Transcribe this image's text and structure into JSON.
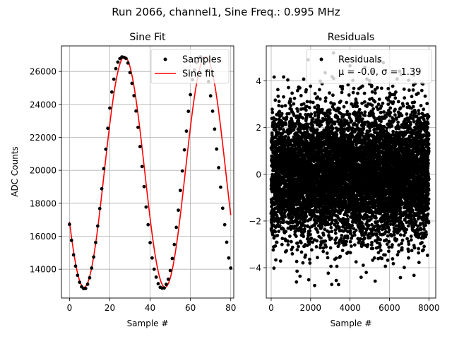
{
  "suptitle": "Run 2066, channel1, Sine Freq.: 0.995 MHz",
  "chart_data": [
    {
      "type": "scatter",
      "title": "Sine Fit",
      "xlabel": "Sample #",
      "ylabel": "ADC Counts",
      "xlim": [
        -4,
        81.5
      ],
      "ylim": [
        12250,
        27550
      ],
      "xticks": [
        0,
        20,
        40,
        60,
        80
      ],
      "yticks": [
        14000,
        16000,
        18000,
        20000,
        22000,
        24000,
        26000
      ],
      "grid": true,
      "legend": "top-right",
      "fit": {
        "amplitude": 7000,
        "offset": 19900,
        "period": 40.2,
        "x_peak": 27.3,
        "x_range": [
          0,
          80
        ]
      },
      "series": [
        {
          "name": "Samples",
          "kind": "points",
          "color": "#000000",
          "x_start": 0,
          "x_step": 1,
          "values": [
            16720,
            15750,
            14870,
            14190,
            13630,
            13210,
            12930,
            12820,
            12830,
            13090,
            13480,
            14070,
            14740,
            15620,
            16620,
            17680,
            18880,
            20100,
            21280,
            22550,
            23780,
            24750,
            25530,
            26170,
            26570,
            26780,
            26880,
            26860,
            26790,
            26510,
            25930,
            25280,
            24530,
            23600,
            22610,
            21440,
            20230,
            19010,
            17770,
            16700,
            15610,
            14680,
            14000,
            13520,
            13120,
            12900,
            12850,
            12860,
            13080,
            13390,
            13920,
            14650,
            15500,
            16540,
            17580,
            18780,
            19960,
            21240,
            22380,
            23580,
            24590,
            25500,
            26090,
            26530,
            26820,
            26890,
            26770,
            26490,
            26040,
            25390,
            24520,
            23590,
            22500,
            21290,
            20160,
            18980,
            17700,
            16700,
            15640,
            14680,
            14070
          ]
        },
        {
          "name": "Sine fit",
          "kind": "line",
          "color": "#ff0000"
        }
      ]
    },
    {
      "type": "scatter",
      "title": "Residuals",
      "xlabel": "Sample #",
      "legend_label": "Residuals",
      "legend_stats": "μ = -0.0, σ = 1.39",
      "mu": -0.0,
      "sigma": 1.39,
      "n_points": 8000,
      "xlim": [
        -250,
        8350
      ],
      "ylim": [
        -5.3,
        5.5
      ],
      "xticks": [
        0,
        2000,
        4000,
        6000,
        8000
      ],
      "yticks": [
        -4,
        -2,
        0,
        2,
        4
      ],
      "grid": true,
      "legend": "top-right",
      "marker_color": "#000000"
    }
  ]
}
